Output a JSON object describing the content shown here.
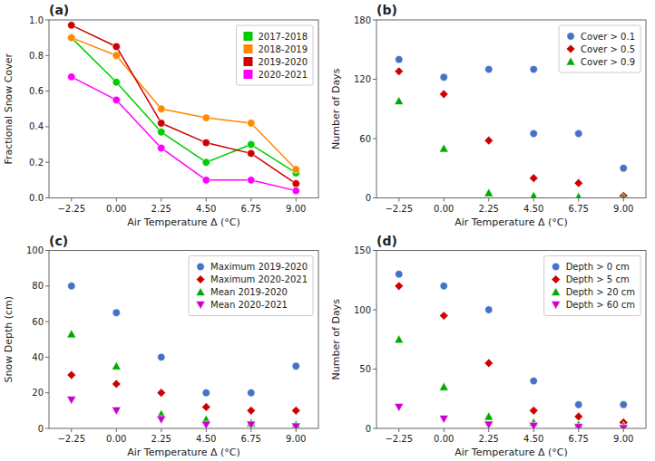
{
  "chart_data": [
    {
      "type": "line",
      "title": "(a)",
      "x_label": "Air Temperature Δ (°C)",
      "y_label": "Fractional Snow Cover",
      "xlim": [
        -3.375,
        10.125
      ],
      "ylim": [
        0.0,
        1.0
      ],
      "xticks": [
        {
          "value": -2.25,
          "label": "−2.25"
        },
        {
          "value": 0.0,
          "label": "0.00"
        },
        {
          "value": 2.25,
          "label": "2.25"
        },
        {
          "value": 4.5,
          "label": "4.50"
        },
        {
          "value": 6.75,
          "label": "6.75"
        },
        {
          "value": 9.0,
          "label": "9.00"
        }
      ],
      "yticks": [
        {
          "value": 0.0,
          "label": "0.0"
        },
        0.2,
        0.4,
        0.6,
        0.8,
        {
          "value": 1.0,
          "label": "1.0"
        }
      ],
      "grid": false,
      "legend": "upper-right",
      "series": [
        {
          "name": "2017-2018",
          "color": "#00CC00",
          "marker": "circle",
          "x": [
            -2.25,
            0.0,
            2.25,
            4.5,
            6.75,
            9.0
          ],
          "values": [
            0.9,
            0.65,
            0.37,
            0.2,
            0.3,
            0.14
          ]
        },
        {
          "name": "2018-2019",
          "color": "#FF8800",
          "marker": "circle",
          "x": [
            -2.25,
            0.0,
            2.25,
            4.5,
            6.75,
            9.0
          ],
          "values": [
            0.9,
            0.8,
            0.5,
            0.45,
            0.42,
            0.16
          ]
        },
        {
          "name": "2019-2020",
          "color": "#CC0000",
          "marker": "circle",
          "x": [
            -2.25,
            0.0,
            2.25,
            4.5,
            6.75,
            9.0
          ],
          "values": [
            0.97,
            0.85,
            0.42,
            0.31,
            0.25,
            0.08
          ]
        },
        {
          "name": "2020-2021",
          "color": "#FF00FF",
          "marker": "circle",
          "x": [
            -2.25,
            0.0,
            2.25,
            4.5,
            6.75,
            9.0
          ],
          "values": [
            0.68,
            0.55,
            0.28,
            0.1,
            0.1,
            0.04
          ]
        }
      ]
    },
    {
      "type": "scatter",
      "title": "(b)",
      "x_label": "Air Temperature Δ (°C)",
      "y_label": "Number of Days",
      "xlim": [
        -3.375,
        10.125
      ],
      "ylim": [
        0,
        180
      ],
      "xticks": [
        {
          "value": -2.25,
          "label": "−2.25"
        },
        {
          "value": 0.0,
          "label": "0.00"
        },
        {
          "value": 2.25,
          "label": "2.25"
        },
        {
          "value": 4.5,
          "label": "4.50"
        },
        {
          "value": 6.75,
          "label": "6.75"
        },
        {
          "value": 9.0,
          "label": "9.00"
        }
      ],
      "yticks": [
        0,
        60,
        120,
        180
      ],
      "grid": false,
      "legend": "upper-right",
      "series": [
        {
          "name": "Cover > 0.1",
          "color": "#4472C4",
          "marker": "circle",
          "x": [
            -2.25,
            0.0,
            2.25,
            4.5,
            4.5,
            6.75,
            9.0
          ],
          "values": [
            140,
            122,
            130,
            130,
            65,
            65,
            30
          ]
        },
        {
          "name": "Cover > 0.5",
          "color": "#CC0000",
          "marker": "diamond",
          "x": [
            -2.25,
            0.0,
            2.25,
            4.5,
            6.75,
            9.0
          ],
          "values": [
            128,
            105,
            58,
            20,
            15,
            2
          ]
        },
        {
          "name": "Cover > 0.9",
          "color": "#00AA00",
          "marker": "triangle-up",
          "x": [
            -2.25,
            0.0,
            2.25,
            4.5,
            6.75,
            9.0
          ],
          "values": [
            98,
            50,
            5,
            2,
            1,
            0
          ]
        }
      ]
    },
    {
      "type": "scatter",
      "title": "(c)",
      "x_label": "Air Temperature Δ (°C)",
      "y_label": "Snow Depth (cm)",
      "xlim": [
        -3.375,
        10.125
      ],
      "ylim": [
        0,
        100
      ],
      "xticks": [
        {
          "value": -2.25,
          "label": "−2.25"
        },
        {
          "value": 0.0,
          "label": "0.00"
        },
        {
          "value": 2.25,
          "label": "2.25"
        },
        {
          "value": 4.5,
          "label": "4.50"
        },
        {
          "value": 6.75,
          "label": "6.75"
        },
        {
          "value": 9.0,
          "label": "9.00"
        }
      ],
      "yticks": [
        0,
        20,
        40,
        60,
        80,
        100
      ],
      "grid": false,
      "legend": "upper-right",
      "series": [
        {
          "name": "Maximum 2019-2020",
          "color": "#4472C4",
          "marker": "circle",
          "x": [
            -2.25,
            0.0,
            2.25,
            4.5,
            6.75,
            9.0
          ],
          "values": [
            80,
            65,
            40,
            20,
            20,
            35
          ]
        },
        {
          "name": "Maximum 2020-2021",
          "color": "#CC0000",
          "marker": "diamond",
          "x": [
            -2.25,
            0.0,
            2.25,
            4.5,
            6.75,
            9.0
          ],
          "values": [
            30,
            25,
            20,
            12,
            10,
            10
          ]
        },
        {
          "name": "Mean 2019-2020",
          "color": "#00AA00",
          "marker": "triangle-up",
          "x": [
            -2.25,
            0.0,
            2.25,
            4.5,
            6.75,
            9.0
          ],
          "values": [
            53,
            35,
            8,
            5,
            3,
            2
          ]
        },
        {
          "name": "Mean 2020-2021",
          "color": "#CC00CC",
          "marker": "triangle-down",
          "x": [
            -2.25,
            0.0,
            2.25,
            4.5,
            6.75,
            9.0
          ],
          "values": [
            16,
            10,
            5,
            2,
            2,
            1
          ]
        }
      ]
    },
    {
      "type": "scatter",
      "title": "(d)",
      "x_label": "Air Temperature Δ (°C)",
      "y_label": "Number of Days",
      "xlim": [
        -3.375,
        10.125
      ],
      "ylim": [
        0,
        150
      ],
      "xticks": [
        {
          "value": -2.25,
          "label": "−2.25"
        },
        {
          "value": 0.0,
          "label": "0.00"
        },
        {
          "value": 2.25,
          "label": "2.25"
        },
        {
          "value": 4.5,
          "label": "4.50"
        },
        {
          "value": 6.75,
          "label": "6.75"
        },
        {
          "value": 9.0,
          "label": "9.00"
        }
      ],
      "yticks": [
        0,
        50,
        100,
        150
      ],
      "grid": false,
      "legend": "upper-right",
      "series": [
        {
          "name": "Depth > 0 cm",
          "color": "#4472C4",
          "marker": "circle",
          "x": [
            -2.25,
            0.0,
            2.25,
            4.5,
            6.75,
            9.0
          ],
          "values": [
            130,
            120,
            100,
            40,
            20,
            20
          ]
        },
        {
          "name": "Depth > 5 cm",
          "color": "#CC0000",
          "marker": "diamond",
          "x": [
            -2.25,
            0.0,
            2.25,
            4.5,
            6.75,
            9.0
          ],
          "values": [
            120,
            95,
            55,
            15,
            10,
            5
          ]
        },
        {
          "name": "Depth > 20 cm",
          "color": "#00AA00",
          "marker": "triangle-up",
          "x": [
            -2.25,
            0.0,
            2.25,
            4.5,
            6.75,
            9.0
          ],
          "values": [
            75,
            35,
            10,
            5,
            3,
            2
          ]
        },
        {
          "name": "Depth > 60 cm",
          "color": "#CC00CC",
          "marker": "triangle-down",
          "x": [
            -2.25,
            0.0,
            2.25,
            4.5,
            6.75,
            9.0
          ],
          "values": [
            18,
            8,
            3,
            2,
            1,
            0
          ]
        }
      ]
    }
  ]
}
